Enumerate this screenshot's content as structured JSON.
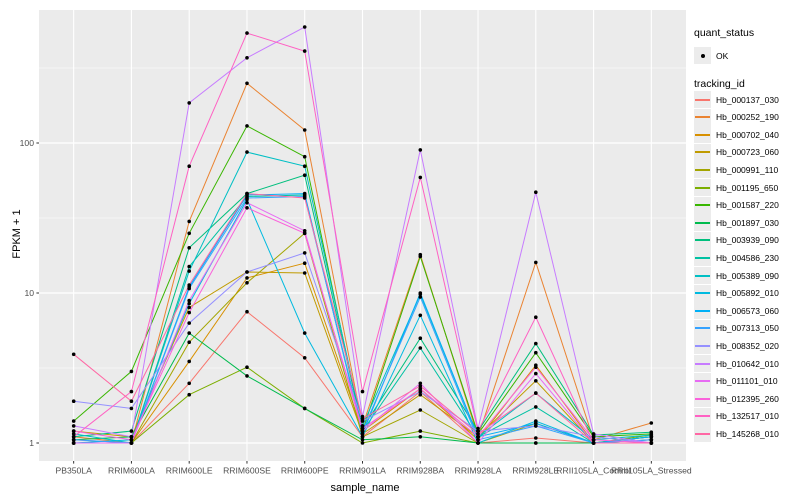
{
  "figure": {
    "background": "#FFFFFF",
    "panel_background": "#EBEBEB",
    "grid_color": "#FFFFFF",
    "tick_color": "#333333",
    "axis_text_color": "#4D4D4D"
  },
  "chart_data": {
    "type": "line",
    "title": "",
    "xlabel": "sample_name",
    "ylabel": "FPKM + 1",
    "y_scale": "log10",
    "ylim": [
      0.66,
      770
    ],
    "y_ticks": [
      1,
      10,
      100
    ],
    "y_tick_labels": [
      "1",
      "10",
      "100"
    ],
    "y_minor_ticks": [
      3.162,
      31.62,
      316.2
    ],
    "grid": "on",
    "legend_position": "right",
    "point_marker": "black-dot",
    "categories": [
      "PB350LA",
      "RRIM600LA",
      "RRIM600LE",
      "RRIM600SE",
      "RRIM600PE",
      "RRIM901LA",
      "RRIM928BA",
      "RRIM928LA",
      "RRIM928LE",
      "RRII105LA_Control",
      "RRII105LA_Stressed"
    ],
    "series": [
      {
        "name": "Hb_000137_030",
        "color": "#F8766D",
        "values": [
          1.05,
          1.0,
          2.5,
          7.5,
          3.7,
          1.1,
          2.2,
          1.0,
          1.08,
          1.0,
          1.0
        ]
      },
      {
        "name": "Hb_000252_190",
        "color": "#EA8331",
        "values": [
          1.1,
          1.0,
          30,
          250,
          122,
          1.3,
          18,
          1.1,
          16,
          1.05,
          1.36
        ]
      },
      {
        "name": "Hb_000702_040",
        "color": "#D89000",
        "values": [
          1.0,
          1.0,
          3.5,
          12.6,
          15.8,
          1.2,
          2.3,
          1.05,
          3.3,
          1.0,
          1.1
        ]
      },
      {
        "name": "Hb_000723_060",
        "color": "#C09B00",
        "values": [
          1.2,
          1.1,
          8.0,
          13.8,
          13.6,
          1.15,
          2.1,
          1.1,
          2.6,
          1.0,
          1.05
        ]
      },
      {
        "name": "Hb_000991_110",
        "color": "#A3A500",
        "values": [
          1.0,
          1.0,
          4.7,
          11.7,
          25,
          1.1,
          1.66,
          1.0,
          1.35,
          1.0,
          1.0
        ]
      },
      {
        "name": "Hb_001195_650",
        "color": "#7CAE00",
        "values": [
          1.0,
          1.0,
          2.1,
          3.2,
          1.7,
          1.0,
          1.2,
          1.0,
          1.0,
          1.0,
          1.13
        ]
      },
      {
        "name": "Hb_001587_220",
        "color": "#39B600",
        "values": [
          1.4,
          3.0,
          25,
          130,
          81,
          1.2,
          17.5,
          1.15,
          4.0,
          1.1,
          1.15
        ]
      },
      {
        "name": "Hb_001897_030",
        "color": "#00BB4E",
        "values": [
          1.05,
          1.1,
          5.4,
          2.8,
          1.7,
          1.05,
          1.1,
          1.0,
          1.0,
          1.0,
          1.1
        ]
      },
      {
        "name": "Hb_003939_090",
        "color": "#00BF7D",
        "values": [
          1.1,
          1.2,
          20,
          46,
          61,
          1.25,
          5.0,
          1.2,
          4.6,
          1.13,
          1.18
        ]
      },
      {
        "name": "Hb_004586_230",
        "color": "#00C1A3",
        "values": [
          1.0,
          1.0,
          15,
          44,
          45,
          1.2,
          4.3,
          1.1,
          1.74,
          1.0,
          1.1
        ]
      },
      {
        "name": "Hb_005389_090",
        "color": "#00BFC4",
        "values": [
          1.15,
          1.0,
          14,
          87,
          70,
          1.3,
          9.8,
          1.1,
          2.15,
          1.05,
          1.13
        ]
      },
      {
        "name": "Hb_005892_010",
        "color": "#00BAE0",
        "values": [
          1.0,
          1.05,
          8.5,
          42,
          5.4,
          1.1,
          7.1,
          1.0,
          1.4,
          1.0,
          1.05
        ]
      },
      {
        "name": "Hb_006573_060",
        "color": "#00B0F6",
        "values": [
          1.0,
          1.0,
          11,
          45,
          46,
          1.15,
          10,
          1.1,
          1.35,
          1.0,
          1.1
        ]
      },
      {
        "name": "Hb_007313_050",
        "color": "#35A2FF",
        "values": [
          1.05,
          1.0,
          10.7,
          43,
          44,
          1.2,
          9.4,
          1.05,
          1.3,
          1.0,
          1.05
        ]
      },
      {
        "name": "Hb_008352_020",
        "color": "#9590FF",
        "values": [
          1.9,
          1.7,
          6.3,
          13.8,
          18.5,
          1.4,
          2.2,
          1.2,
          1.3,
          1.1,
          1.0
        ]
      },
      {
        "name": "Hb_010642_010",
        "color": "#C77CFF",
        "values": [
          1.3,
          1.1,
          185,
          370,
          593,
          1.5,
          90,
          1.25,
          47,
          1.15,
          1.0
        ]
      },
      {
        "name": "Hb_011101_010",
        "color": "#E76BF3",
        "values": [
          1.0,
          1.0,
          8.9,
          40,
          26,
          1.2,
          2.5,
          1.0,
          2.9,
          1.0,
          1.0
        ]
      },
      {
        "name": "Hb_012395_260",
        "color": "#FA62DB",
        "values": [
          1.2,
          1.05,
          7.4,
          37,
          25,
          1.25,
          2.3,
          1.1,
          3.2,
          1.05,
          1.0
        ]
      },
      {
        "name": "Hb_132517_010",
        "color": "#FF61C3",
        "values": [
          1.1,
          2.2,
          70,
          540,
          410,
          2.2,
          59,
          1.2,
          6.9,
          1.0,
          1.0
        ]
      },
      {
        "name": "Hb_145268_010",
        "color": "#FF67A4",
        "values": [
          3.9,
          1.9,
          11.3,
          46,
          43,
          1.45,
          2.4,
          1.15,
          2.15,
          1.0,
          1.0
        ]
      }
    ]
  },
  "legend": {
    "quant_title": "quant_status",
    "quant_items": [
      {
        "label": "OK",
        "marker": "black-point"
      }
    ],
    "tracking_title": "tracking_id"
  }
}
